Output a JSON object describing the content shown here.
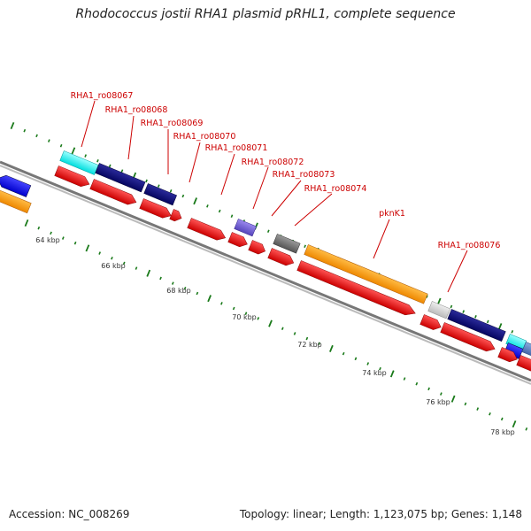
{
  "header": {
    "title": "Rhodococcus jostii RHA1 plasmid pRHL1, complete sequence"
  },
  "footer": {
    "accession": "Accession: NC_008269",
    "topology": "Topology: linear; Length: 1,123,075 bp; Genes: 1,148"
  },
  "gene_labels": [
    "RHA1_ro08067",
    "RHA1_ro08068",
    "RHA1_ro08069",
    "RHA1_ro08070",
    "RHA1_ro08071",
    "RHA1_ro08072",
    "RHA1_ro08073",
    "RHA1_ro08074",
    "pknK1",
    "RHA1_ro08076"
  ],
  "kbp_labels": [
    "64 kbp",
    "66 kbp",
    "68 kbp",
    "70 kbp",
    "72 kbp",
    "74 kbp",
    "76 kbp",
    "78 kbp"
  ],
  "colors": {
    "label": "#cc0000",
    "cds": "#ee0000",
    "gene_dark_blue": "#0a0a78",
    "gene_orange": "#ff9900",
    "gene_cyan": "#22eeee",
    "gene_blue": "#1a1aee",
    "gene_purple": "#7755dd",
    "gene_gray": "#777777",
    "gene_light_gray": "#cccccc",
    "backbone": "#888888",
    "tick": "#1a7a1a"
  }
}
